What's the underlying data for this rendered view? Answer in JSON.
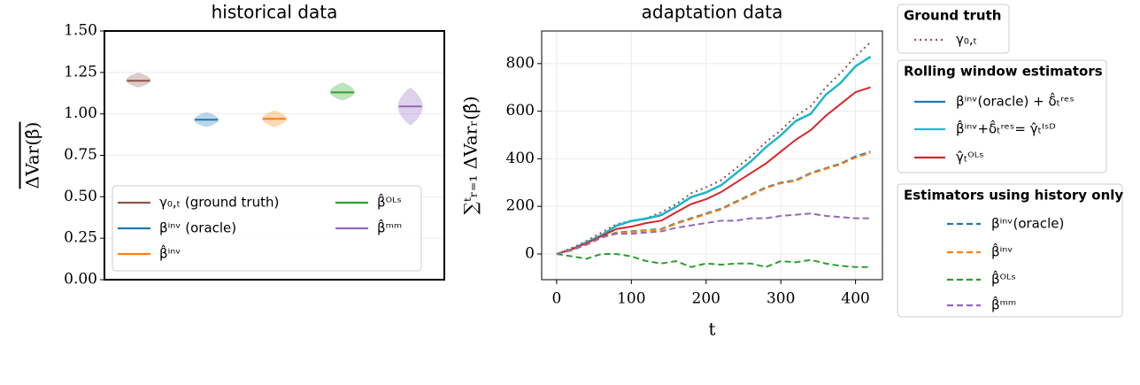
{
  "chart_data": [
    {
      "type": "violin",
      "title": "historical data",
      "ylabel": "ΔVar(β̂)",
      "ylim": [
        0,
        1.5
      ],
      "yticks": [
        {
          "value": 0,
          "label": "0.00"
        },
        {
          "value": 0.25,
          "label": "0.25"
        },
        {
          "value": 0.5,
          "label": "0.50"
        },
        {
          "value": 0.75,
          "label": "0.75"
        },
        {
          "value": 1.0,
          "label": "1.00"
        },
        {
          "value": 1.25,
          "label": "1.25"
        },
        {
          "value": 1.5,
          "label": "1.50"
        }
      ],
      "grid": true,
      "legend_loc": "lower center",
      "series": [
        {
          "name": "γ₀,ₜ (ground truth)",
          "color": "#8c564b",
          "median": 1.2,
          "min": 1.16,
          "max": 1.25
        },
        {
          "name": "βⁱⁿᵛ (oracle)",
          "color": "#1f77b4",
          "median": 0.965,
          "min": 0.92,
          "max": 1.01
        },
        {
          "name": "β̂ⁱⁿᵛ",
          "color": "#ff7f0e",
          "median": 0.97,
          "min": 0.92,
          "max": 1.02
        },
        {
          "name": "β̂ᴼᴸˢ",
          "color": "#2ca02c",
          "median": 1.13,
          "min": 1.08,
          "max": 1.19
        },
        {
          "name": "β̂ᵐᵐ",
          "color": "#9467bd",
          "median": 1.045,
          "min": 0.93,
          "max": 1.16
        }
      ]
    },
    {
      "type": "line",
      "title": "adaptation data",
      "xlabel": "t",
      "ylabel": "∑ᵗᵣ₌₁ ΔVarᵣ(β̂)",
      "x": [
        0,
        20,
        40,
        60,
        80,
        100,
        120,
        140,
        160,
        180,
        200,
        220,
        240,
        260,
        280,
        300,
        320,
        340,
        360,
        380,
        400,
        420
      ],
      "xlim": [
        -20,
        436
      ],
      "ylim": [
        -108,
        937
      ],
      "xticks": [
        0,
        100,
        200,
        300,
        400
      ],
      "yticks": [
        0,
        200,
        400,
        600,
        800
      ],
      "grid": true,
      "legend_loc": "outside right",
      "series_groups": [
        {
          "title": "Ground truth",
          "series": [
            {
              "name": "γ₀,ₜ",
              "color": "#8c564b",
              "linestyle": "dotted",
              "values": [
                0,
                25,
                55,
                90,
                125,
                140,
                150,
                175,
                210,
                255,
                280,
                310,
                360,
                410,
                470,
                520,
                580,
                620,
                700,
                760,
                830,
                890
              ]
            }
          ]
        },
        {
          "title": "Rolling window estimators",
          "series": [
            {
              "name": "βⁱⁿᵛ(oracle) + δ̂ₜʳᵉˢ",
              "color": "#1f77b4",
              "linestyle": "solid",
              "values": [
                0,
                18,
                48,
                78,
                118,
                138,
                148,
                163,
                198,
                238,
                258,
                288,
                338,
                388,
                448,
                498,
                558,
                588,
                668,
                718,
                788,
                828
              ]
            },
            {
              "name": "β̂ⁱⁿᵛ+δ̂ₜʳᵉˢ= γ̂ₜᴵˢᴰ",
              "color": "#17becf",
              "linestyle": "solid",
              "values": [
                0,
                20,
                50,
                80,
                120,
                140,
                150,
                165,
                200,
                240,
                260,
                290,
                340,
                390,
                450,
                500,
                560,
                590,
                670,
                720,
                790,
                830
              ]
            },
            {
              "name": "γ̂ₜᴼᴸˢ",
              "color": "#d62728",
              "linestyle": "solid",
              "values": [
                0,
                20,
                45,
                75,
                105,
                115,
                130,
                140,
                175,
                210,
                230,
                260,
                300,
                340,
                380,
                430,
                480,
                520,
                580,
                630,
                680,
                700
              ]
            }
          ]
        },
        {
          "title": "Estimators using history only",
          "series": [
            {
              "name": "βⁱⁿᵛ(oracle)",
              "color": "#1f77b4",
              "linestyle": "dashed",
              "values": [
                0,
                20,
                40,
                70,
                90,
                95,
                100,
                105,
                130,
                150,
                170,
                190,
                220,
                250,
                280,
                300,
                310,
                340,
                360,
                380,
                410,
                430
              ]
            },
            {
              "name": "β̂ⁱⁿᵛ",
              "color": "#ff7f0e",
              "linestyle": "dashed",
              "values": [
                0,
                18,
                38,
                68,
                88,
                93,
                98,
                103,
                127,
                147,
                167,
                187,
                217,
                247,
                277,
                297,
                307,
                337,
                357,
                377,
                405,
                425
              ]
            },
            {
              "name": "β̂ᴼᴸˢ",
              "color": "#2ca02c",
              "linestyle": "dashed",
              "values": [
                0,
                -10,
                -20,
                0,
                0,
                -10,
                -30,
                -40,
                -30,
                -55,
                -40,
                -45,
                -40,
                -40,
                -55,
                -30,
                -35,
                -25,
                -40,
                -50,
                -55,
                -55
              ]
            },
            {
              "name": "β̂ᵐᵐ",
              "color": "#9467bd",
              "linestyle": "dashed",
              "values": [
                0,
                15,
                40,
                70,
                85,
                85,
                90,
                95,
                110,
                120,
                130,
                140,
                140,
                150,
                150,
                160,
                165,
                170,
                160,
                155,
                150,
                150
              ]
            }
          ]
        }
      ]
    }
  ]
}
